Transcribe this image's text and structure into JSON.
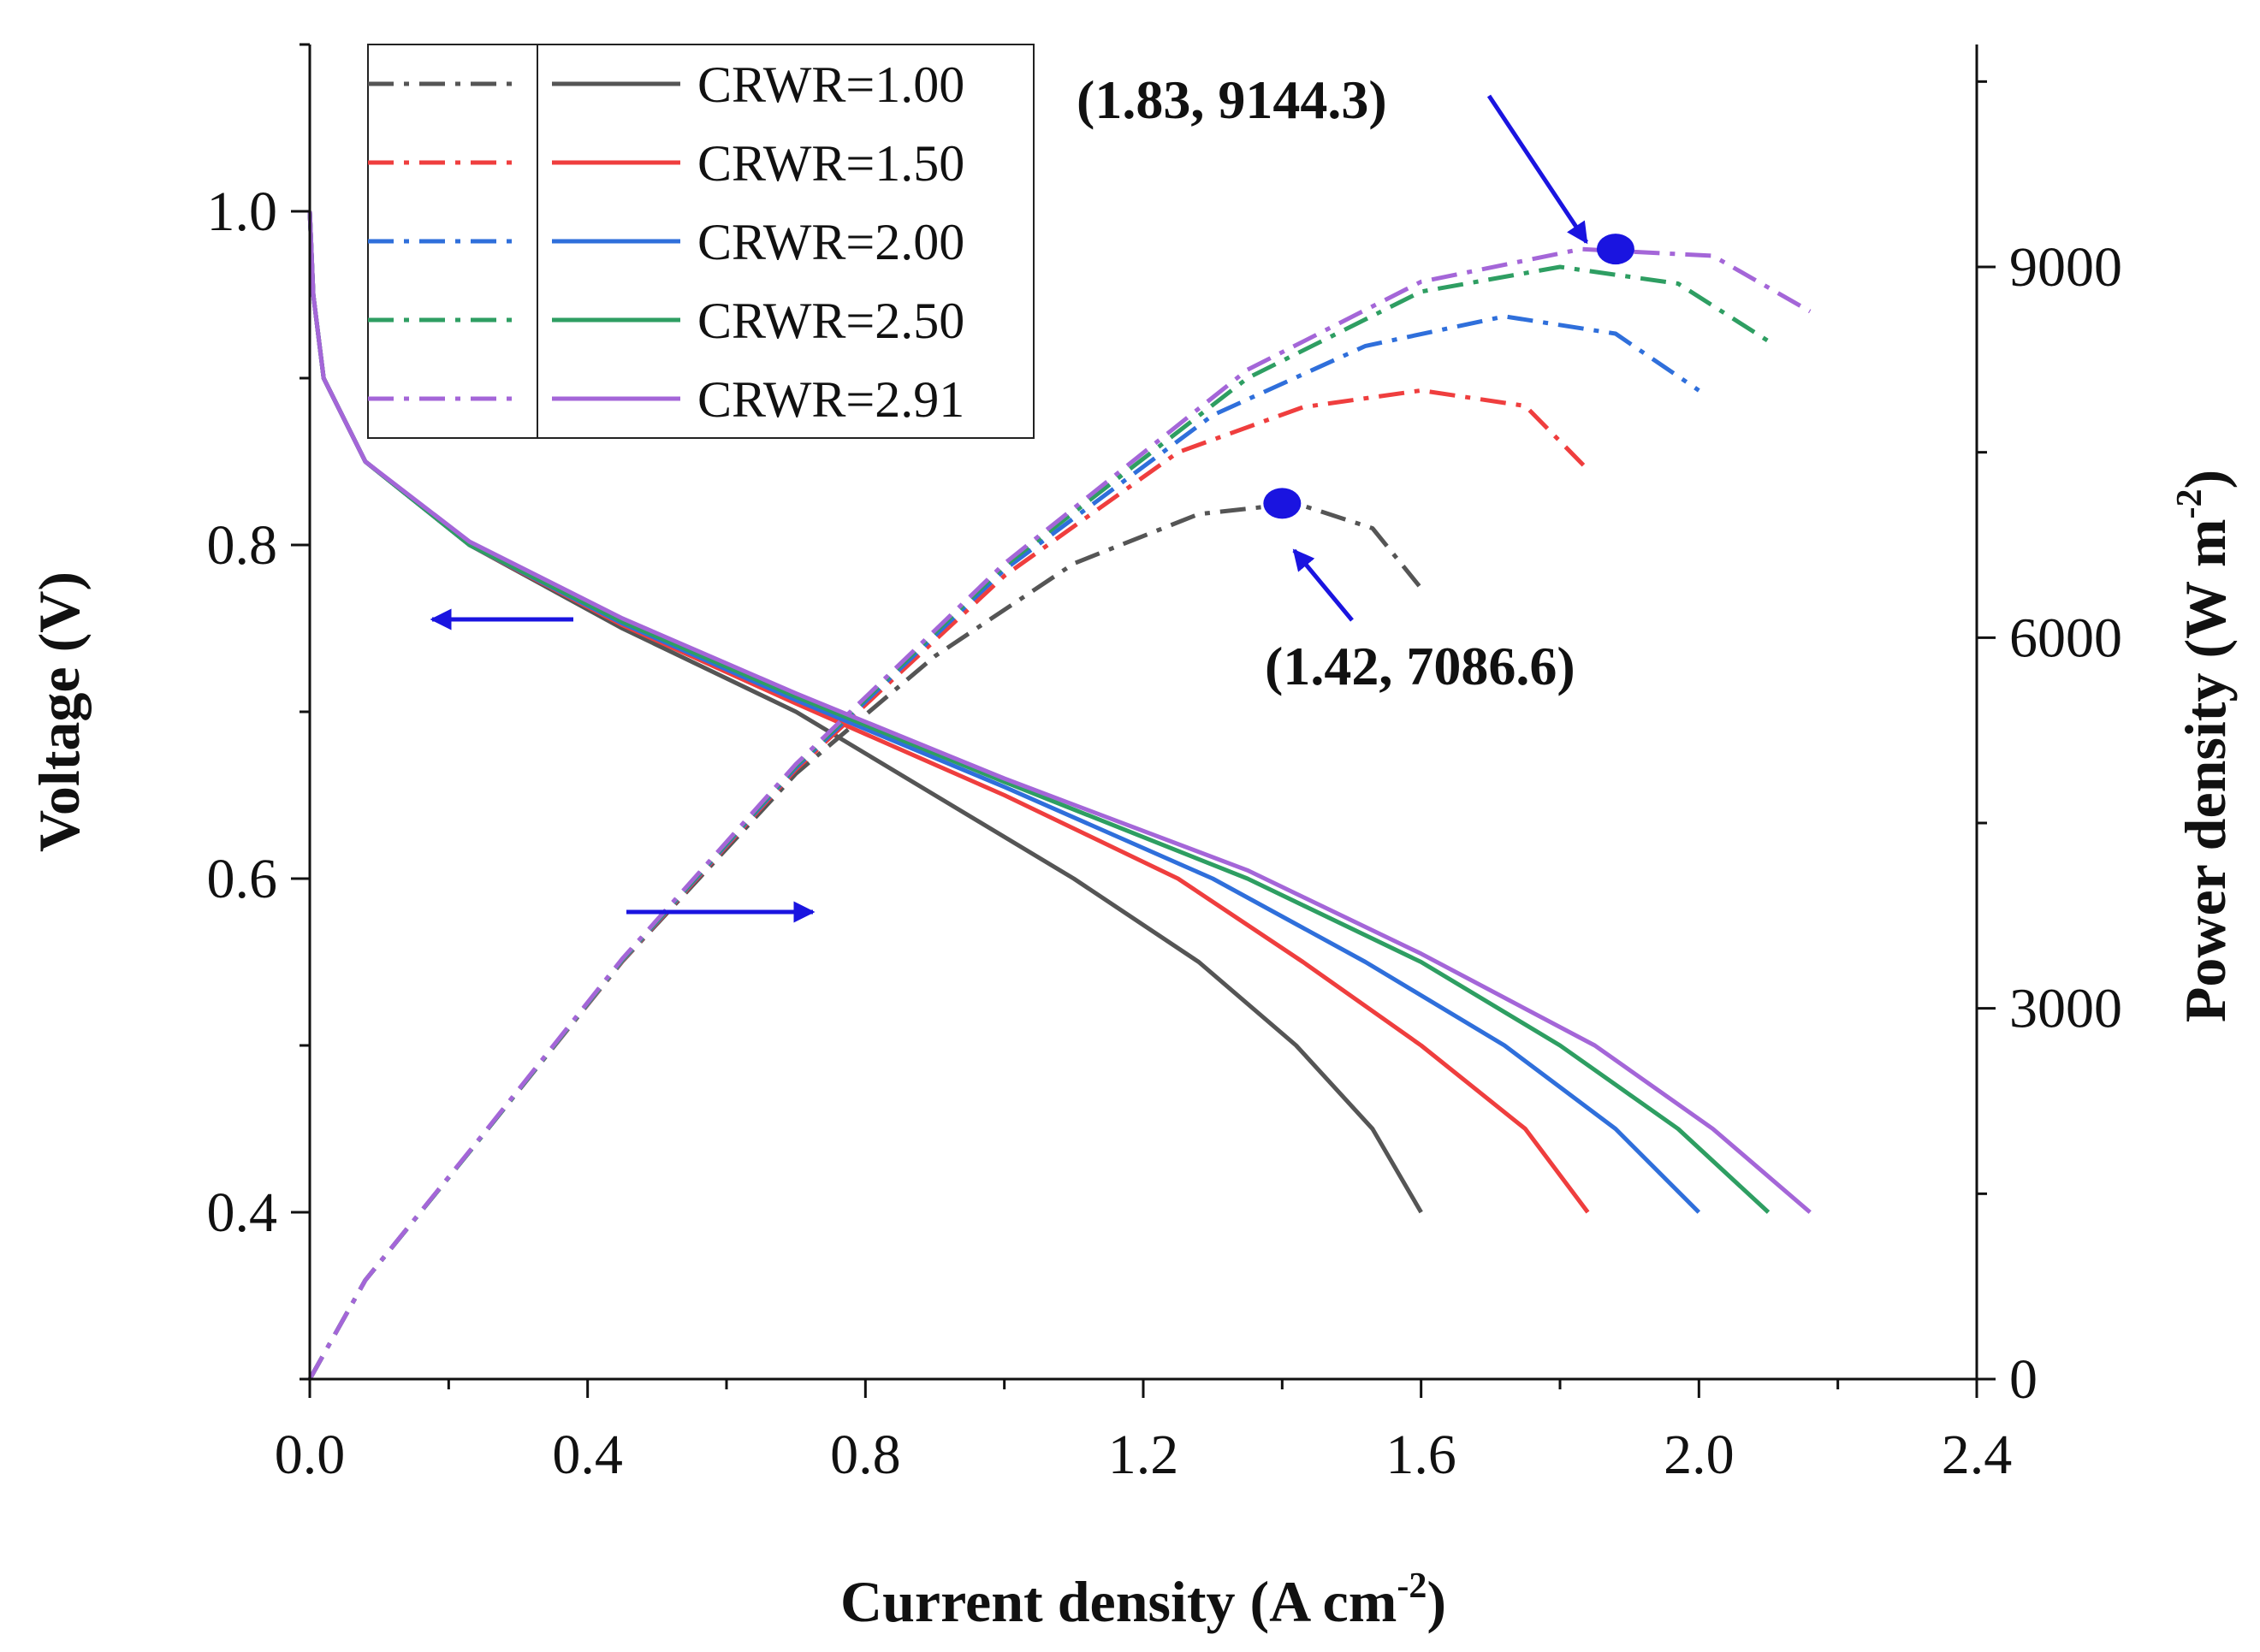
{
  "chart_data": {
    "type": "line",
    "x_axis": {
      "label": "Current density (A cm",
      "label_sup": "-2",
      "label_end": ")",
      "range": [
        0,
        2.4
      ],
      "ticks": [
        0.0,
        0.4,
        0.8,
        1.2,
        1.6,
        2.0,
        2.4
      ],
      "tick_labels": [
        "0.0",
        "0.4",
        "0.8",
        "1.2",
        "1.6",
        "2.0",
        "2.4"
      ]
    },
    "y_left": {
      "label": "Voltage (V)",
      "range": [
        0.3,
        1.1
      ],
      "ticks": [
        0.4,
        0.6,
        0.8,
        1.0
      ],
      "tick_labels": [
        "0.4",
        "0.6",
        "0.8",
        "1.0"
      ]
    },
    "y_right": {
      "label": "Power density (W m",
      "label_sup": "-2",
      "label_end": ")",
      "range": [
        0,
        10800
      ],
      "ticks": [
        0,
        3000,
        6000,
        9000
      ],
      "tick_labels": [
        "0",
        "3000",
        "6000",
        "9000"
      ]
    },
    "series": [
      {
        "name": "CRWR=1.00",
        "color": "#555555",
        "voltage": [
          [
            0,
            1.0
          ],
          [
            0.005,
            0.95
          ],
          [
            0.02,
            0.9
          ],
          [
            0.08,
            0.85
          ],
          [
            0.23,
            0.8
          ],
          [
            0.45,
            0.75
          ],
          [
            0.7,
            0.7
          ],
          [
            0.9,
            0.65
          ],
          [
            1.1,
            0.6
          ],
          [
            1.28,
            0.55
          ],
          [
            1.42,
            0.5
          ],
          [
            1.53,
            0.45
          ],
          [
            1.6,
            0.4
          ]
        ],
        "power": [
          [
            0,
            0
          ],
          [
            0.08,
            800
          ],
          [
            0.23,
            1840
          ],
          [
            0.45,
            3380
          ],
          [
            0.7,
            4900
          ],
          [
            0.9,
            5850
          ],
          [
            1.1,
            6600
          ],
          [
            1.28,
            7000
          ],
          [
            1.42,
            7086.6
          ],
          [
            1.53,
            6885
          ],
          [
            1.6,
            6400
          ]
        ]
      },
      {
        "name": "CRWR=1.50",
        "color": "#ef3e3e",
        "voltage": [
          [
            0,
            1.0
          ],
          [
            0.005,
            0.95
          ],
          [
            0.02,
            0.9
          ],
          [
            0.08,
            0.85
          ],
          [
            0.23,
            0.8
          ],
          [
            0.45,
            0.752
          ],
          [
            0.7,
            0.705
          ],
          [
            1.0,
            0.65
          ],
          [
            1.25,
            0.6
          ],
          [
            1.43,
            0.55
          ],
          [
            1.6,
            0.5
          ],
          [
            1.75,
            0.45
          ],
          [
            1.84,
            0.4
          ]
        ],
        "power": [
          [
            0,
            0
          ],
          [
            0.08,
            800
          ],
          [
            0.23,
            1840
          ],
          [
            0.45,
            3384
          ],
          [
            0.7,
            4935
          ],
          [
            1.0,
            6500
          ],
          [
            1.25,
            7500
          ],
          [
            1.43,
            7865
          ],
          [
            1.6,
            8000
          ],
          [
            1.75,
            7875
          ],
          [
            1.84,
            7360
          ]
        ]
      },
      {
        "name": "CRWR=2.00",
        "color": "#2f6fdb",
        "voltage": [
          [
            0,
            1.0
          ],
          [
            0.005,
            0.95
          ],
          [
            0.02,
            0.9
          ],
          [
            0.08,
            0.85
          ],
          [
            0.23,
            0.8
          ],
          [
            0.45,
            0.753
          ],
          [
            0.7,
            0.707
          ],
          [
            1.0,
            0.655
          ],
          [
            1.3,
            0.6
          ],
          [
            1.52,
            0.55
          ],
          [
            1.72,
            0.5
          ],
          [
            1.88,
            0.45
          ],
          [
            2.0,
            0.4
          ]
        ],
        "power": [
          [
            0,
            0
          ],
          [
            0.08,
            800
          ],
          [
            0.23,
            1840
          ],
          [
            0.45,
            3389
          ],
          [
            0.7,
            4949
          ],
          [
            1.0,
            6550
          ],
          [
            1.3,
            7800
          ],
          [
            1.52,
            8360
          ],
          [
            1.72,
            8600
          ],
          [
            1.88,
            8460
          ],
          [
            2.0,
            8000
          ]
        ]
      },
      {
        "name": "CRWR=2.50",
        "color": "#2e9e62",
        "voltage": [
          [
            0,
            1.0
          ],
          [
            0.005,
            0.95
          ],
          [
            0.02,
            0.9
          ],
          [
            0.08,
            0.85
          ],
          [
            0.23,
            0.8
          ],
          [
            0.45,
            0.754
          ],
          [
            0.7,
            0.709
          ],
          [
            1.0,
            0.658
          ],
          [
            1.35,
            0.6
          ],
          [
            1.6,
            0.55
          ],
          [
            1.8,
            0.5
          ],
          [
            1.97,
            0.45
          ],
          [
            2.1,
            0.4
          ]
        ],
        "power": [
          [
            0,
            0
          ],
          [
            0.08,
            800
          ],
          [
            0.23,
            1840
          ],
          [
            0.45,
            3393
          ],
          [
            0.7,
            4963
          ],
          [
            1.0,
            6580
          ],
          [
            1.35,
            8100
          ],
          [
            1.6,
            8800
          ],
          [
            1.8,
            9000
          ],
          [
            1.97,
            8865
          ],
          [
            2.1,
            8400
          ]
        ]
      },
      {
        "name": "CRWR=2.91",
        "color": "#a466d8",
        "voltage": [
          [
            0,
            1.0
          ],
          [
            0.005,
            0.95
          ],
          [
            0.02,
            0.9
          ],
          [
            0.08,
            0.85
          ],
          [
            0.23,
            0.802
          ],
          [
            0.45,
            0.756
          ],
          [
            0.7,
            0.711
          ],
          [
            1.0,
            0.66
          ],
          [
            1.35,
            0.605
          ],
          [
            1.6,
            0.555
          ],
          [
            1.85,
            0.5
          ],
          [
            2.02,
            0.45
          ],
          [
            2.16,
            0.4
          ]
        ],
        "power": [
          [
            0,
            0
          ],
          [
            0.08,
            800
          ],
          [
            0.23,
            1845
          ],
          [
            0.45,
            3402
          ],
          [
            0.7,
            4977
          ],
          [
            1.0,
            6600
          ],
          [
            1.35,
            8168
          ],
          [
            1.6,
            8880
          ],
          [
            1.83,
            9144.3
          ],
          [
            2.02,
            9090
          ],
          [
            2.16,
            8640
          ]
        ]
      }
    ],
    "legend": {
      "position": "top-left"
    },
    "annotations": [
      {
        "text": "(1.83, 9144.3)",
        "x": 1.88,
        "y": 9144.3
      },
      {
        "text": "(1.42, 7086.6)",
        "x": 1.4,
        "y": 7086.6
      }
    ]
  }
}
